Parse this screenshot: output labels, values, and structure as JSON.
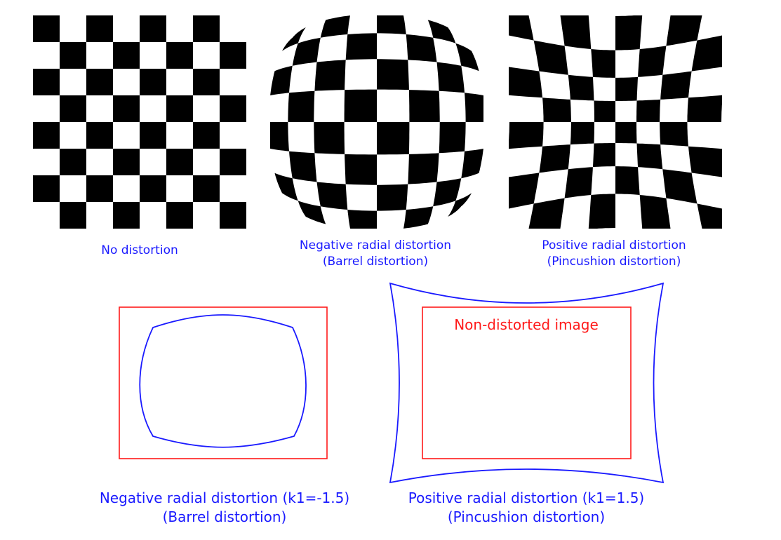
{
  "panels": {
    "no_distortion": {
      "caption": "No distortion"
    },
    "barrel": {
      "caption_line1": "Negative radial distortion",
      "caption_line2": "(Barrel distortion)"
    },
    "pincushion": {
      "caption_line1": "Positive radial distortion",
      "caption_line2": "(Pincushion distortion)"
    }
  },
  "outline_diagrams": {
    "negative": {
      "caption_line1": "Negative radial distortion (k1=-1.5)",
      "caption_line2": "(Barrel distortion)",
      "k1": -1.5
    },
    "positive": {
      "caption_line1": "Positive radial distortion (k1=1.5)",
      "caption_line2": "(Pincushion distortion)",
      "k1": 1.5
    },
    "reference_label": "Non-distorted image"
  },
  "checkerboard": {
    "rows": 8,
    "cols": 8
  },
  "colors": {
    "caption_text": "#1a1aff",
    "outline_red": "#ff1a1a",
    "outline_blue": "#1a1aff",
    "square": "#000000"
  }
}
